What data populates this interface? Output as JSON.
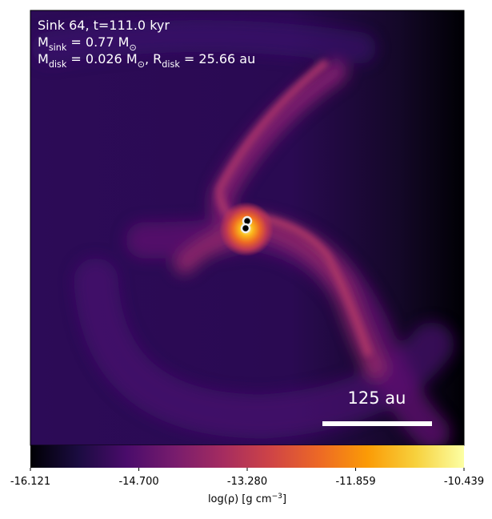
{
  "chart_data": {
    "type": "image",
    "annotations": [
      [
        {
          "text": "Sink 64, t=111.0 kyr"
        }
      ],
      [
        {
          "text": "M"
        },
        {
          "sub": "sink"
        },
        {
          "text": " = 0.77 M"
        },
        {
          "sub": "⊙"
        }
      ],
      [
        {
          "text": "M"
        },
        {
          "sub": "disk"
        },
        {
          "text": " = 0.026 M"
        },
        {
          "sub": "⊙"
        },
        {
          "text": ", R"
        },
        {
          "sub": "disk"
        },
        {
          "text": " = 25.66 au"
        }
      ]
    ],
    "scale_bar_label": "125 au",
    "colorbar": {
      "label": [
        {
          "text": "log(ρ) [g cm"
        },
        {
          "sup": "−3"
        },
        {
          "text": "]"
        }
      ],
      "clim": [
        -16.121,
        -10.439
      ],
      "ticks": [
        -16.121,
        {
          "value": -14.7,
          "label": "-14.700"
        },
        {
          "value": -13.28,
          "label": "-13.280"
        },
        -11.859,
        -10.439
      ],
      "colormap": "inferno"
    }
  }
}
